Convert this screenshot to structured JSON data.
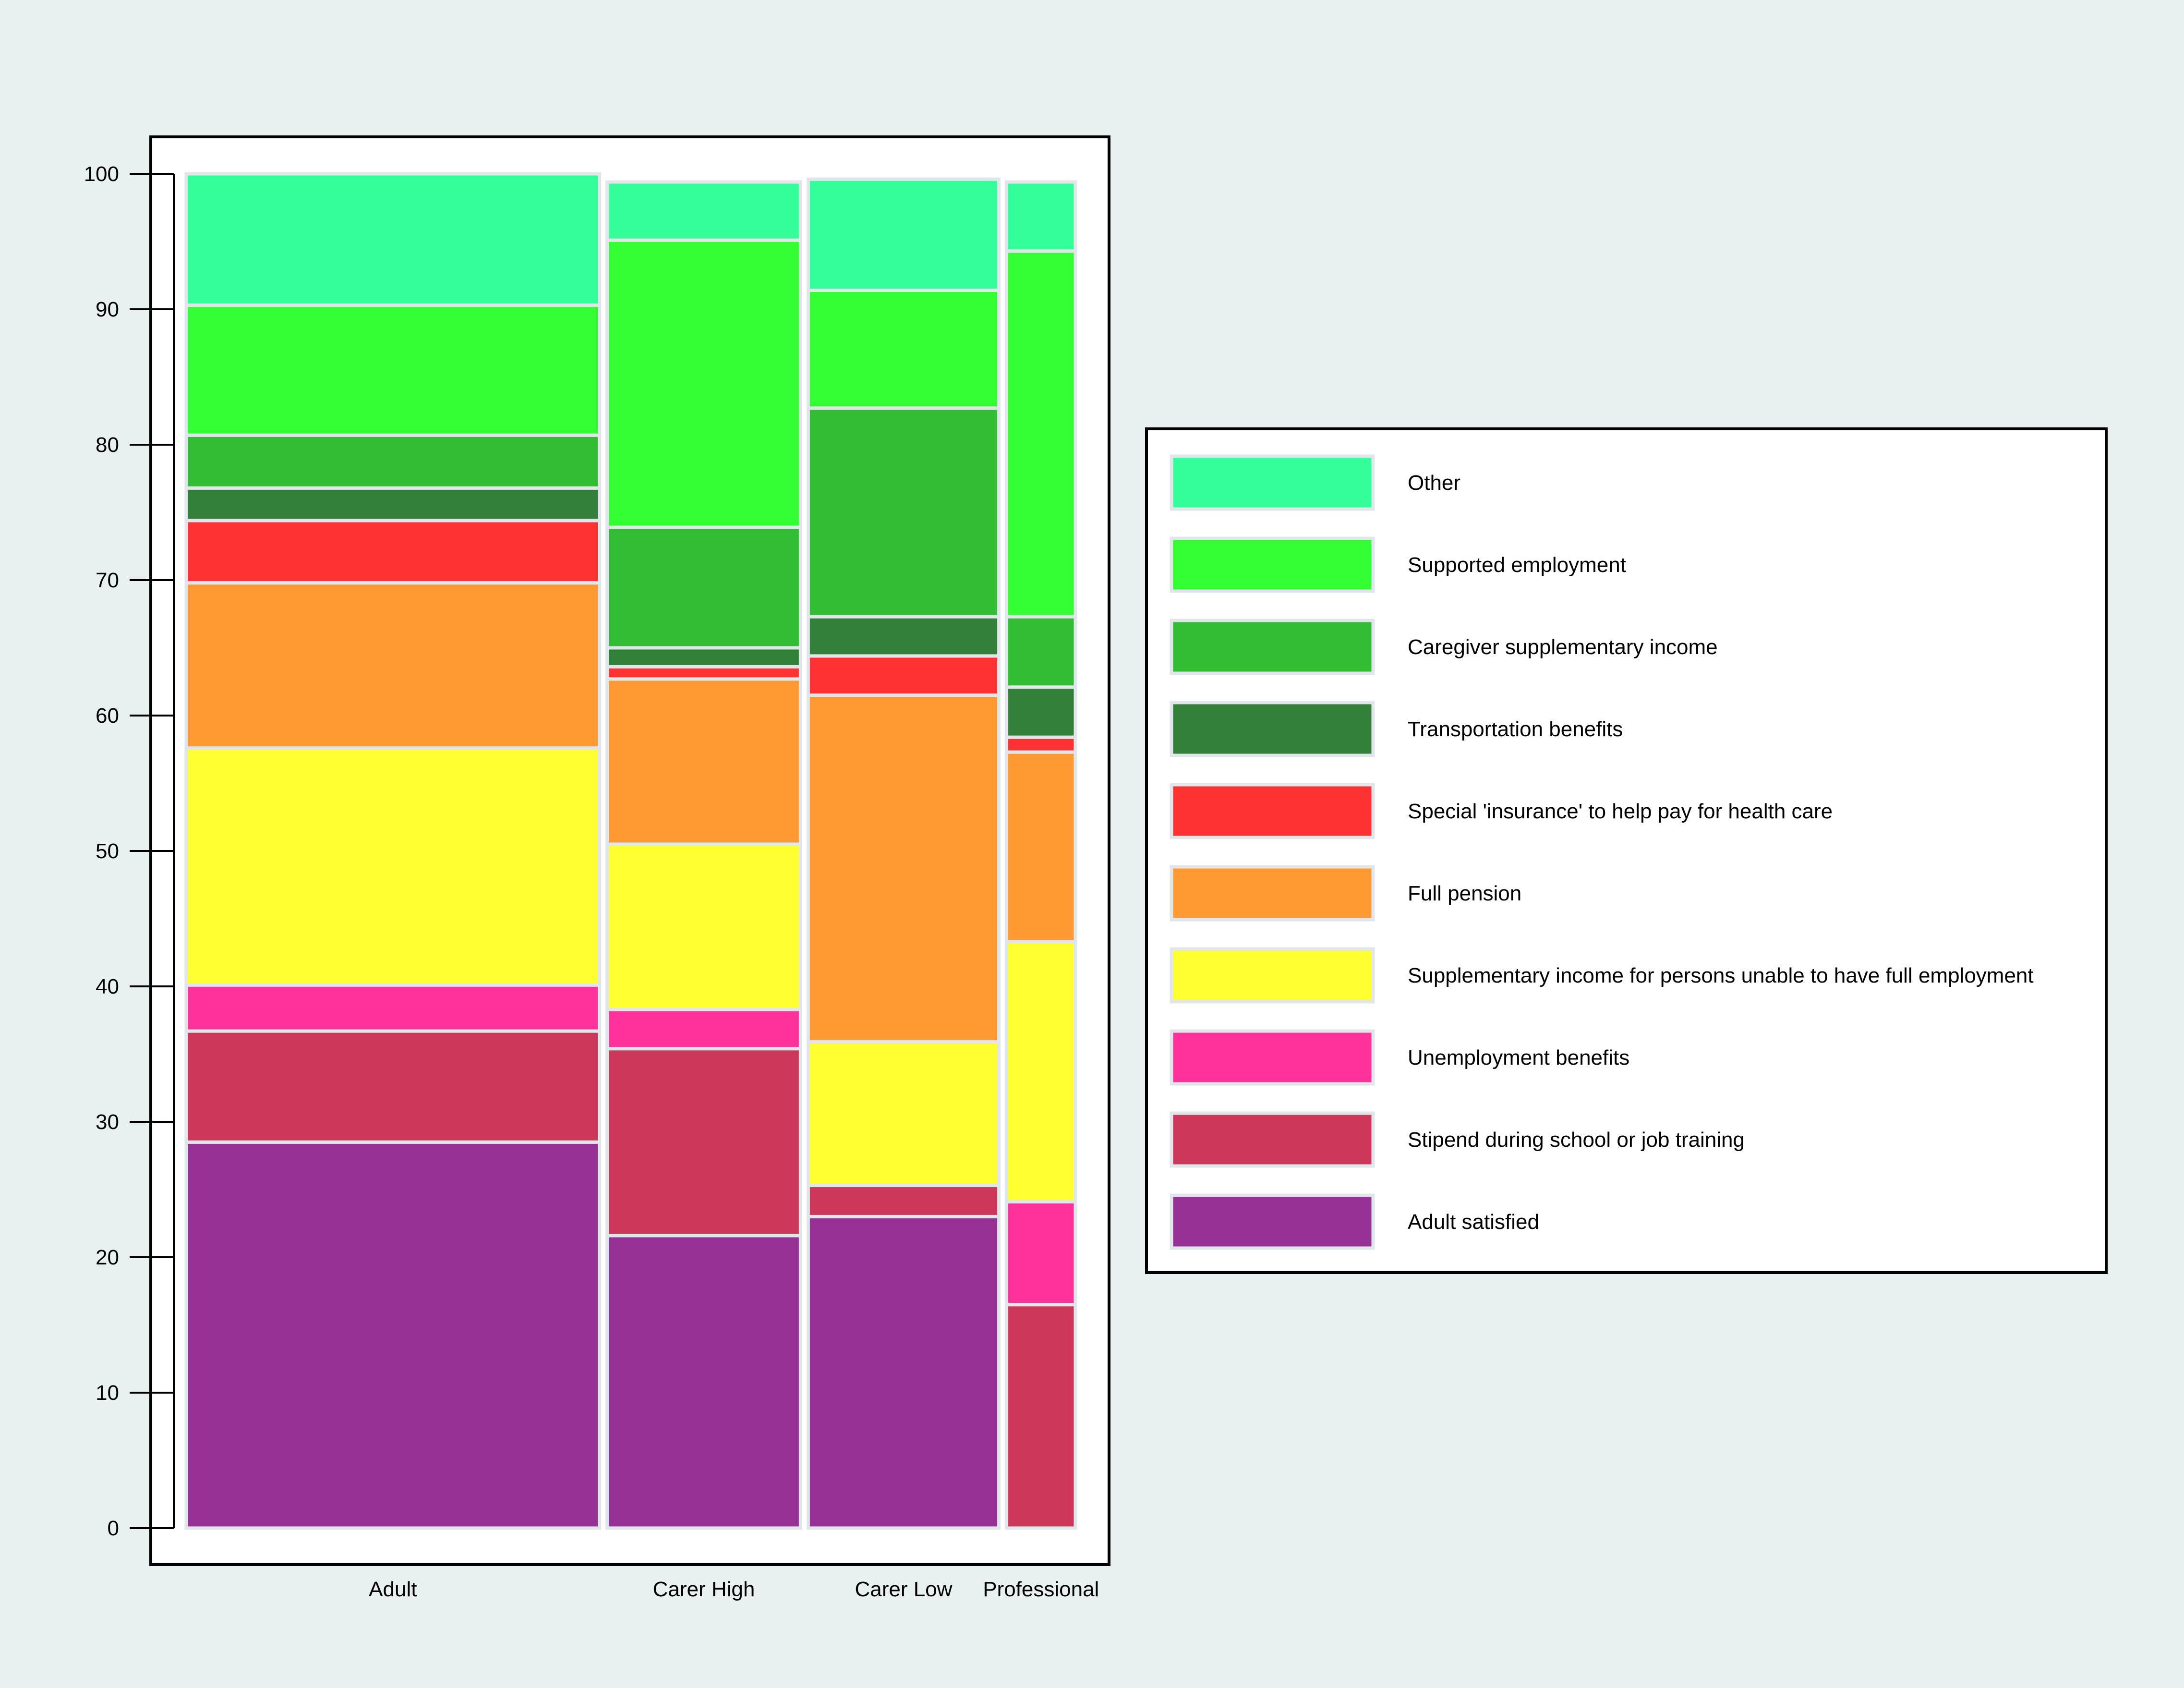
{
  "chart_data": {
    "type": "mosaic",
    "title": "",
    "xlabel": "",
    "ylabel": "",
    "ylim": [
      0,
      100
    ],
    "yticks": [
      "0",
      "10",
      "20",
      "30",
      "40",
      "50",
      "60",
      "70",
      "80",
      "90",
      "100"
    ],
    "categories": [
      "Adult",
      "Carer High",
      "Carer Low",
      "Professional"
    ],
    "category_widths": [
      31.2,
      14.6,
      14.4,
      5.2
    ],
    "legend_position": "right",
    "series": [
      {
        "name": "Adult satisfied",
        "color": "#963296",
        "values": [
          28.5,
          21.6,
          23.0,
          0
        ]
      },
      {
        "name": "Stipend during school or job training",
        "color": "#cd3759",
        "values": [
          8.2,
          13.8,
          2.3,
          16.5
        ]
      },
      {
        "name": "Unemployment benefits",
        "color": "#ff329b",
        "values": [
          3.4,
          2.9,
          0,
          7.6
        ]
      },
      {
        "name": "Supplementary income for persons unable to have full employment",
        "color": "#ffff32",
        "values": [
          17.5,
          12.2,
          10.6,
          19.2
        ]
      },
      {
        "name": "Full pension",
        "color": "#ff9a32",
        "values": [
          12.2,
          12.2,
          25.6,
          14.0
        ]
      },
      {
        "name": "Special 'insurance' to help pay for health care",
        "color": "#ff3232",
        "values": [
          4.6,
          0.9,
          2.9,
          1.1
        ]
      },
      {
        "name": "Transportation benefits",
        "color": "#32803a",
        "values": [
          2.4,
          1.4,
          2.9,
          3.7
        ]
      },
      {
        "name": "Caregiver supplementary income",
        "color": "#32be32",
        "values": [
          3.9,
          8.9,
          15.4,
          5.2
        ]
      },
      {
        "name": "Supported employment",
        "color": "#32ff32",
        "values": [
          9.6,
          21.2,
          8.7,
          27.0
        ]
      },
      {
        "name": "Other",
        "color": "#32ff9a",
        "values": [
          9.7,
          4.3,
          8.2,
          5.1
        ]
      }
    ],
    "legend": [
      {
        "label": "Other",
        "color": "#32ff9a"
      },
      {
        "label": "Supported employment",
        "color": "#32ff32"
      },
      {
        "label": "Caregiver supplementary income",
        "color": "#32be32"
      },
      {
        "label": "Transportation benefits",
        "color": "#32803a"
      },
      {
        "label": "Special 'insurance' to help pay for health care",
        "color": "#ff3232"
      },
      {
        "label": "Full pension",
        "color": "#ff9a32"
      },
      {
        "label": "Supplementary income for persons unable to have full employment",
        "color": "#ffff32"
      },
      {
        "label": "Unemployment benefits",
        "color": "#ff329b"
      },
      {
        "label": "Stipend during school or job training",
        "color": "#cd3759"
      },
      {
        "label": "Adult satisfied",
        "color": "#963296"
      }
    ]
  }
}
